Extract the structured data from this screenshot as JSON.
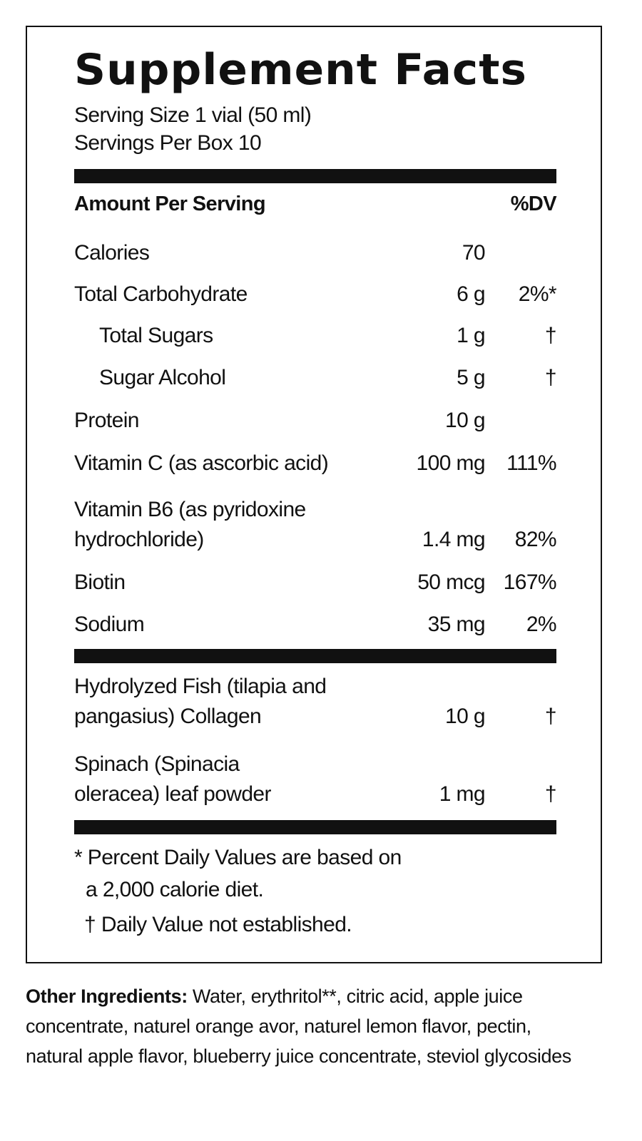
{
  "title": "Supplement Facts",
  "serving_size": "Serving Size 1 vial (50 ml)",
  "servings_per": "Servings Per Box 10",
  "header": {
    "amount": "Amount Per Serving",
    "dv": "%DV"
  },
  "rows": [
    {
      "name": "Calories",
      "amount": "70",
      "dv": ""
    },
    {
      "name": "Total Carbohydrate",
      "amount": "6 g",
      "dv": "2%*"
    },
    {
      "name": "Total Sugars",
      "amount": "1 g",
      "dv": "†"
    },
    {
      "name": "Sugar Alcohol",
      "amount": "5 g",
      "dv": "†"
    },
    {
      "name": "Protein",
      "amount": "10 g",
      "dv": ""
    },
    {
      "name": "Vitamin C (as ascorbic acid)",
      "amount": "100 mg",
      "dv": "111%"
    },
    {
      "name": "Vitamin B6 (as pyridoxine",
      "name2": "hydrochloride)",
      "amount": "1.4 mg",
      "dv": "82%"
    },
    {
      "name": "Biotin",
      "amount": "50 mcg",
      "dv": "167%"
    },
    {
      "name": "Sodium",
      "amount": "35 mg",
      "dv": "2%"
    }
  ],
  "other_rows": [
    {
      "name": "Hydrolyzed Fish (tilapia and",
      "name2": "pangasius) Collagen",
      "amount": "10 g",
      "dv": "†"
    },
    {
      "name": "Spinach (Spinacia",
      "name2": "oleracea) leaf powder",
      "amount": "1 mg",
      "dv": "†"
    }
  ],
  "footnotes": [
    "* Percent Daily Values are based on",
    "a 2,000 calorie diet.",
    "† Daily Value not established."
  ],
  "other_ingredients": {
    "label": "Other Ingredients:",
    "text": " Water, erythritol**, citric acid, apple juice concentrate, naturel orange avor, naturel lemon flavor, pectin, natural apple flavor, blueberry juice concentrate, steviol glycosides"
  }
}
